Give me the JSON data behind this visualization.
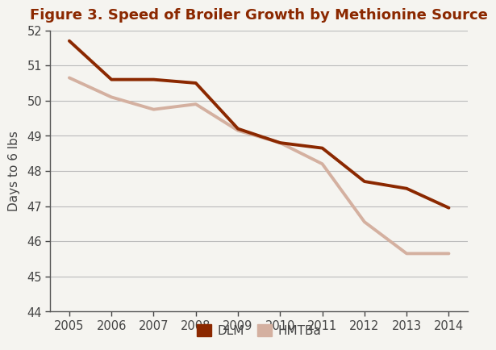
{
  "title": "Figure 3. Speed of Broiler Growth by Methionine Source",
  "xlabel": "",
  "ylabel": "Days to 6 lbs",
  "years": [
    2005,
    2006,
    2007,
    2008,
    2009,
    2010,
    2011,
    2012,
    2013,
    2014
  ],
  "DLM": [
    51.7,
    50.6,
    50.6,
    50.5,
    49.2,
    48.8,
    48.65,
    47.7,
    47.5,
    46.95
  ],
  "HMTBa": [
    50.65,
    50.1,
    49.75,
    49.9,
    49.15,
    48.8,
    48.2,
    46.55,
    45.65,
    45.65
  ],
  "DLM_color": "#8B2800",
  "HMTBa_color": "#D4B0A0",
  "background_color": "#F5F4F0",
  "grid_color": "#BBBBBB",
  "title_color": "#8B2800",
  "spine_color": "#555555",
  "tick_label_color": "#444444",
  "ylabel_color": "#444444",
  "ylim": [
    44,
    52
  ],
  "yticks": [
    44,
    45,
    46,
    47,
    48,
    49,
    50,
    51,
    52
  ],
  "line_width": 2.8,
  "title_fontsize": 13,
  "axis_fontsize": 11,
  "tick_fontsize": 10.5,
  "legend_fontsize": 11
}
